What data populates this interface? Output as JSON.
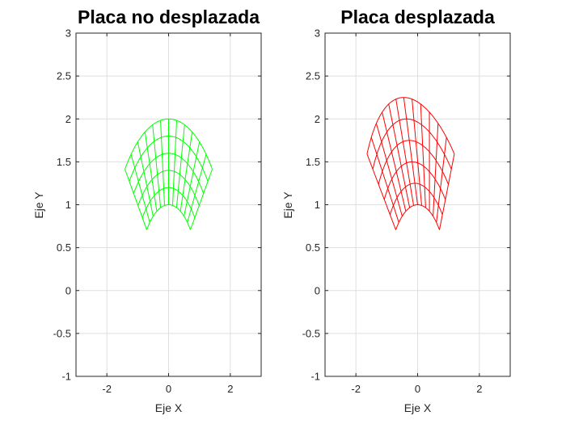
{
  "chart_data": [
    {
      "type": "line",
      "title": "Placa no desplazada",
      "xlabel": "Eje X",
      "ylabel": "Eje Y",
      "xlim": [
        -3,
        3
      ],
      "ylim": [
        -1,
        3
      ],
      "xticks": [
        -2,
        0,
        2
      ],
      "yticks": [
        -1,
        -0.5,
        0,
        0.5,
        1,
        1.5,
        2,
        2.5,
        3
      ],
      "ytick_labels": [
        "-1",
        "-0.5",
        "0",
        "0.5",
        "1",
        "1.5",
        "2",
        "2.5",
        "3"
      ],
      "xtick_labels": [
        "-2",
        "0",
        "2"
      ],
      "grid": true,
      "color": "#00ff00",
      "mesh": {
        "description_of_values": "polar grid, radius r, angle theta in degrees",
        "radii": [
          1.0,
          1.2,
          1.4,
          1.6,
          1.8,
          2.0
        ],
        "angles_deg": [
          45,
          52.5,
          60,
          67.5,
          75,
          82.5,
          90,
          97.5,
          105,
          112.5,
          120,
          127.5,
          135
        ],
        "displaced": false
      }
    },
    {
      "type": "line",
      "title": "Placa desplazada",
      "xlabel": "Eje X",
      "ylabel": "Eje Y",
      "xlim": [
        -3,
        3
      ],
      "ylim": [
        -1,
        3
      ],
      "xticks": [
        -2,
        0,
        2
      ],
      "yticks": [
        -1,
        -0.5,
        0,
        0.5,
        1,
        1.5,
        2,
        2.5,
        3
      ],
      "ytick_labels": [
        "-1",
        "-0.5",
        "0",
        "0.5",
        "1",
        "1.5",
        "2",
        "2.5",
        "3"
      ],
      "xtick_labels": [
        "-2",
        "0",
        "2"
      ],
      "grid": true,
      "color": "#ff0000",
      "mesh": {
        "radii": [
          1.0,
          1.2,
          1.4,
          1.6,
          1.8,
          2.0
        ],
        "angles_deg": [
          45,
          52.5,
          60,
          67.5,
          75,
          82.5,
          90,
          97.5,
          105,
          112.5,
          120,
          127.5,
          135
        ],
        "displaced": true,
        "shift_x_at_max_radius": -0.45,
        "shift_y_at_max_radius": 0.25
      }
    }
  ]
}
